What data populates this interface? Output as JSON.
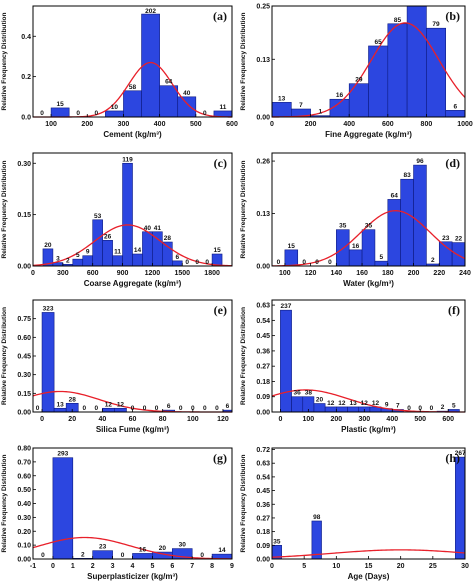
{
  "chart_data": [
    {
      "type": "bar",
      "panel": "(a)",
      "xlabel": "Cement (kg/m³)",
      "ylabel": "Relative Frequency Distribution",
      "xlim": [
        50,
        600
      ],
      "ylim": [
        0,
        0.55
      ],
      "xticks": [
        "100",
        "200",
        "300",
        "400",
        "500",
        "600"
      ],
      "xtick_values": [
        100,
        200,
        300,
        400,
        500,
        600
      ],
      "yticks": [
        "0.0",
        "0.2",
        "0.4"
      ],
      "ytick_values": [
        0.0,
        0.2,
        0.4
      ],
      "bins": [
        {
          "x0": 100,
          "x1": 150,
          "value": 0.045,
          "count": "15"
        },
        {
          "x0": 150,
          "x1": 200,
          "value": 0.0,
          "count": "0"
        },
        {
          "x0": 200,
          "x1": 250,
          "value": 0.0,
          "count": "0"
        },
        {
          "x0": 250,
          "x1": 300,
          "value": 0.03,
          "count": "10"
        },
        {
          "x0": 300,
          "x1": 350,
          "value": 0.13,
          "count": "58"
        },
        {
          "x0": 350,
          "x1": 400,
          "value": 0.51,
          "count": "202"
        },
        {
          "x0": 400,
          "x1": 450,
          "value": 0.155,
          "count": "64"
        },
        {
          "x0": 450,
          "x1": 500,
          "value": 0.1,
          "count": "40"
        },
        {
          "x0": 500,
          "x1": 550,
          "value": 0.0,
          "count": "0"
        },
        {
          "x0": 550,
          "x1": 600,
          "value": 0.03,
          "count": "11"
        }
      ],
      "count_labels_extra": [
        {
          "x": 75,
          "count": "0"
        }
      ],
      "fit_curve": {
        "mean": 375,
        "sd": 60,
        "peak": 0.27
      }
    },
    {
      "type": "bar",
      "panel": "(b)",
      "xlabel": "Fine Aggregate (kg/m³)",
      "ylabel": "Relative Frequency Distribution",
      "xlim": [
        0,
        1000
      ],
      "ylim": [
        0,
        0.25
      ],
      "xticks": [
        "0",
        "200",
        "400",
        "600",
        "800",
        "1000"
      ],
      "xtick_values": [
        0,
        200,
        400,
        600,
        800,
        1000
      ],
      "yticks": [
        "0.00",
        "0.13",
        "0.25"
      ],
      "ytick_values": [
        0.0,
        0.13,
        0.25
      ],
      "bins": [
        {
          "x0": 0,
          "x1": 100,
          "value": 0.033,
          "count": "13"
        },
        {
          "x0": 100,
          "x1": 200,
          "value": 0.018,
          "count": "7"
        },
        {
          "x0": 200,
          "x1": 300,
          "value": 0.003,
          "count": "1"
        },
        {
          "x0": 300,
          "x1": 400,
          "value": 0.04,
          "count": "16"
        },
        {
          "x0": 400,
          "x1": 500,
          "value": 0.075,
          "count": "29"
        },
        {
          "x0": 500,
          "x1": 600,
          "value": 0.16,
          "count": "65"
        },
        {
          "x0": 600,
          "x1": 700,
          "value": 0.21,
          "count": "85"
        },
        {
          "x0": 700,
          "x1": 800,
          "value": 0.25,
          "count": ""
        },
        {
          "x0": 800,
          "x1": 900,
          "value": 0.2,
          "count": "79"
        },
        {
          "x0": 900,
          "x1": 1000,
          "value": 0.015,
          "count": "6"
        }
      ],
      "fit_curve": {
        "mean": 690,
        "sd": 175,
        "peak": 0.212
      }
    },
    {
      "type": "bar",
      "panel": "(c)",
      "xlabel": "Coarse Aggregate (kg/m³)",
      "ylabel": "Relative Frequency Distribution",
      "xlim": [
        0,
        2000
      ],
      "ylim": [
        0,
        0.33
      ],
      "xticks": [
        "0",
        "300",
        "600",
        "900",
        "1200",
        "1500",
        "1800"
      ],
      "xtick_values": [
        0,
        300,
        600,
        900,
        1200,
        1500,
        1800
      ],
      "yticks": [
        "0.00",
        "0.15",
        "0.30"
      ],
      "ytick_values": [
        0.0,
        0.15,
        0.3
      ],
      "bins": [
        {
          "x0": 100,
          "x1": 200,
          "value": 0.05,
          "count": "20"
        },
        {
          "x0": 200,
          "x1": 300,
          "value": 0.01,
          "count": "3"
        },
        {
          "x0": 300,
          "x1": 400,
          "value": 0.005,
          "count": "2"
        },
        {
          "x0": 400,
          "x1": 500,
          "value": 0.02,
          "count": "5"
        },
        {
          "x0": 500,
          "x1": 600,
          "value": 0.03,
          "count": "9"
        },
        {
          "x0": 600,
          "x1": 700,
          "value": 0.135,
          "count": "53"
        },
        {
          "x0": 700,
          "x1": 800,
          "value": 0.075,
          "count": "26"
        },
        {
          "x0": 800,
          "x1": 900,
          "value": 0.03,
          "count": "11"
        },
        {
          "x0": 900,
          "x1": 1000,
          "value": 0.3,
          "count": "119"
        },
        {
          "x0": 1000,
          "x1": 1100,
          "value": 0.035,
          "count": "14"
        },
        {
          "x0": 1100,
          "x1": 1200,
          "value": 0.1,
          "count": "40"
        },
        {
          "x0": 1200,
          "x1": 1300,
          "value": 0.1,
          "count": "41"
        },
        {
          "x0": 1300,
          "x1": 1400,
          "value": 0.07,
          "count": "28"
        },
        {
          "x0": 1400,
          "x1": 1500,
          "value": 0.015,
          "count": "6"
        },
        {
          "x0": 1500,
          "x1": 1600,
          "value": 0.0,
          "count": "0"
        },
        {
          "x0": 1600,
          "x1": 1700,
          "value": 0.0,
          "count": "0"
        },
        {
          "x0": 1700,
          "x1": 1800,
          "value": 0.0,
          "count": "0"
        },
        {
          "x0": 1800,
          "x1": 1900,
          "value": 0.035,
          "count": "15"
        }
      ],
      "fit_curve": {
        "mean": 950,
        "sd": 330,
        "peak": 0.12
      }
    },
    {
      "type": "bar",
      "panel": "(d)",
      "xlabel": "Water (kg/m³)",
      "ylabel": "Relative Frequency Distribution",
      "xlim": [
        90,
        240
      ],
      "ylim": [
        0,
        0.28
      ],
      "xticks": [
        "100",
        "120",
        "140",
        "160",
        "180",
        "200",
        "220",
        "240"
      ],
      "xtick_values": [
        100,
        120,
        140,
        160,
        180,
        200,
        220,
        240
      ],
      "yticks": [
        "0.00",
        "0.13",
        "0.26"
      ],
      "ytick_values": [
        0.0,
        0.13,
        0.26
      ],
      "bins": [
        {
          "x0": 100,
          "x1": 110,
          "value": 0.04,
          "count": "15"
        },
        {
          "x0": 110,
          "x1": 120,
          "value": 0.0,
          "count": "0"
        },
        {
          "x0": 120,
          "x1": 130,
          "value": 0.0,
          "count": "0"
        },
        {
          "x0": 130,
          "x1": 140,
          "value": 0.0,
          "count": "0"
        },
        {
          "x0": 140,
          "x1": 150,
          "value": 0.09,
          "count": "35"
        },
        {
          "x0": 150,
          "x1": 160,
          "value": 0.04,
          "count": "16"
        },
        {
          "x0": 160,
          "x1": 170,
          "value": 0.09,
          "count": "35"
        },
        {
          "x0": 170,
          "x1": 180,
          "value": 0.012,
          "count": "5"
        },
        {
          "x0": 180,
          "x1": 190,
          "value": 0.165,
          "count": "64"
        },
        {
          "x0": 190,
          "x1": 200,
          "value": 0.215,
          "count": "83"
        },
        {
          "x0": 200,
          "x1": 210,
          "value": 0.25,
          "count": "96"
        },
        {
          "x0": 210,
          "x1": 220,
          "value": 0.005,
          "count": "2"
        },
        {
          "x0": 220,
          "x1": 230,
          "value": 0.06,
          "count": "23"
        },
        {
          "x0": 230,
          "x1": 240,
          "value": 0.058,
          "count": "22"
        }
      ],
      "count_labels_extra": [
        {
          "x": 95,
          "count": "0"
        }
      ],
      "fit_curve": {
        "mean": 186,
        "sd": 27,
        "peak": 0.137
      }
    },
    {
      "type": "bar",
      "panel": "(e)",
      "xlabel": "Silica Fume (kg/m³)",
      "ylabel": "Relative Frequency Distribution",
      "xlim": [
        -6,
        126
      ],
      "ylim": [
        0,
        0.9
      ],
      "xticks": [
        "0",
        "20",
        "40",
        "60",
        "80",
        "100",
        "120"
      ],
      "xtick_values": [
        0,
        20,
        40,
        60,
        80,
        100,
        120
      ],
      "yticks": [
        "0.00",
        "0.15",
        "0.30",
        "0.45",
        "0.60",
        "0.75"
      ],
      "ytick_values": [
        0.0,
        0.15,
        0.3,
        0.45,
        0.6,
        0.75
      ],
      "bins": [
        {
          "x0": 0,
          "x1": 8,
          "value": 0.8,
          "count": "323"
        },
        {
          "x0": 8,
          "x1": 16,
          "value": 0.03,
          "count": "13"
        },
        {
          "x0": 16,
          "x1": 24,
          "value": 0.07,
          "count": "28"
        },
        {
          "x0": 24,
          "x1": 32,
          "value": 0.0,
          "count": "0"
        },
        {
          "x0": 32,
          "x1": 40,
          "value": 0.0,
          "count": "0"
        },
        {
          "x0": 40,
          "x1": 48,
          "value": 0.03,
          "count": "12"
        },
        {
          "x0": 48,
          "x1": 56,
          "value": 0.03,
          "count": "12"
        },
        {
          "x0": 56,
          "x1": 64,
          "value": 0.0,
          "count": "0"
        },
        {
          "x0": 64,
          "x1": 72,
          "value": 0.0,
          "count": "0"
        },
        {
          "x0": 72,
          "x1": 80,
          "value": 0.0,
          "count": "0"
        },
        {
          "x0": 80,
          "x1": 88,
          "value": 0.015,
          "count": "6"
        },
        {
          "x0": 88,
          "x1": 96,
          "value": 0.0,
          "count": "0"
        },
        {
          "x0": 96,
          "x1": 104,
          "value": 0.0,
          "count": "0"
        },
        {
          "x0": 104,
          "x1": 112,
          "value": 0.0,
          "count": "0"
        },
        {
          "x0": 112,
          "x1": 120,
          "value": 0.0,
          "count": "0"
        },
        {
          "x0": 120,
          "x1": 126,
          "value": 0.015,
          "count": "6"
        }
      ],
      "count_labels_extra": [
        {
          "x": -3,
          "count": "0"
        }
      ],
      "fit_curve": {
        "mean": 12,
        "sd": 26,
        "peak": 0.165
      }
    },
    {
      "type": "bar",
      "panel": "(f)",
      "xlabel": "Plastic (kg/m³)",
      "ylabel": "Relative Frequency Distribution",
      "xlim": [
        -30,
        660
      ],
      "ylim": [
        0,
        0.66
      ],
      "xticks": [
        "0",
        "100",
        "200",
        "300",
        "400",
        "500",
        "600"
      ],
      "xtick_values": [
        0,
        100,
        200,
        300,
        400,
        500,
        600
      ],
      "yticks": [
        "0.00",
        "0.09",
        "0.18",
        "0.27",
        "0.36",
        "0.45",
        "0.54",
        "0.63"
      ],
      "ytick_values": [
        0.0,
        0.09,
        0.18,
        0.27,
        0.36,
        0.45,
        0.54,
        0.63
      ],
      "bins": [
        {
          "x0": 0,
          "x1": 40,
          "value": 0.6,
          "count": "237"
        },
        {
          "x0": 40,
          "x1": 80,
          "value": 0.09,
          "count": "36"
        },
        {
          "x0": 80,
          "x1": 120,
          "value": 0.09,
          "count": "38"
        },
        {
          "x0": 120,
          "x1": 160,
          "value": 0.05,
          "count": "20"
        },
        {
          "x0": 160,
          "x1": 200,
          "value": 0.03,
          "count": "12"
        },
        {
          "x0": 200,
          "x1": 240,
          "value": 0.03,
          "count": "12"
        },
        {
          "x0": 240,
          "x1": 280,
          "value": 0.03,
          "count": "13"
        },
        {
          "x0": 280,
          "x1": 320,
          "value": 0.03,
          "count": "12"
        },
        {
          "x0": 320,
          "x1": 360,
          "value": 0.03,
          "count": "12"
        },
        {
          "x0": 360,
          "x1": 400,
          "value": 0.02,
          "count": "9"
        },
        {
          "x0": 400,
          "x1": 440,
          "value": 0.015,
          "count": "7"
        },
        {
          "x0": 440,
          "x1": 480,
          "value": 0.0,
          "count": "0"
        },
        {
          "x0": 480,
          "x1": 520,
          "value": 0.0,
          "count": "0"
        },
        {
          "x0": 520,
          "x1": 560,
          "value": 0.0,
          "count": "0"
        },
        {
          "x0": 560,
          "x1": 600,
          "value": 0.005,
          "count": "2"
        },
        {
          "x0": 600,
          "x1": 640,
          "value": 0.015,
          "count": "5"
        }
      ],
      "fit_curve": {
        "mean": 90,
        "sd": 150,
        "peak": 0.13
      }
    },
    {
      "type": "bar",
      "panel": "(g)",
      "xlabel": "Superplasticizer (kg/m³)",
      "ylabel": "Relative Frequency Distribution",
      "xlim": [
        -1,
        9
      ],
      "ylim": [
        0,
        0.8
      ],
      "xticks": [
        "-1",
        "0",
        "1",
        "2",
        "3",
        "4",
        "5",
        "6",
        "7",
        "8",
        "9"
      ],
      "xtick_values": [
        -1,
        0,
        1,
        2,
        3,
        4,
        5,
        6,
        7,
        8,
        9
      ],
      "yticks": [
        "0.00",
        "0.10",
        "0.20",
        "0.30",
        "0.40",
        "0.50",
        "0.60",
        "0.70",
        "0.80"
      ],
      "ytick_values": [
        0.0,
        0.1,
        0.2,
        0.3,
        0.4,
        0.5,
        0.6,
        0.7,
        0.8
      ],
      "bins": [
        {
          "x0": 0,
          "x1": 1,
          "value": 0.73,
          "count": "293"
        },
        {
          "x0": 1,
          "x1": 2,
          "value": 0.005,
          "count": "2"
        },
        {
          "x0": 2,
          "x1": 3,
          "value": 0.06,
          "count": "23"
        },
        {
          "x0": 3,
          "x1": 4,
          "value": 0.0,
          "count": "0"
        },
        {
          "x0": 4,
          "x1": 5,
          "value": 0.04,
          "count": "16"
        },
        {
          "x0": 5,
          "x1": 6,
          "value": 0.05,
          "count": "20"
        },
        {
          "x0": 6,
          "x1": 7,
          "value": 0.075,
          "count": "30"
        },
        {
          "x0": 7,
          "x1": 8,
          "value": 0.0,
          "count": "0"
        },
        {
          "x0": 8,
          "x1": 9,
          "value": 0.035,
          "count": "14"
        }
      ],
      "count_labels_extra": [
        {
          "x": -0.5,
          "count": "0"
        }
      ],
      "fit_curve": {
        "mean": 1.6,
        "sd": 2.3,
        "peak": 0.155
      }
    },
    {
      "type": "bar",
      "panel": "(h)",
      "xlabel": "Age (Days)",
      "ylabel": "Relative Frequency Distribution",
      "xlim": [
        0,
        30
      ],
      "ylim": [
        0,
        0.73
      ],
      "xticks": [
        "0",
        "5",
        "10",
        "15",
        "20",
        "25",
        "30"
      ],
      "xtick_values": [
        0,
        5,
        10,
        15,
        20,
        25,
        30
      ],
      "yticks": [
        "0.00",
        "0.09",
        "0.18",
        "0.27",
        "0.36",
        "0.45",
        "0.54",
        "0.63",
        "0.72"
      ],
      "ytick_values": [
        0.0,
        0.09,
        0.18,
        0.27,
        0.36,
        0.45,
        0.54,
        0.63,
        0.72
      ],
      "bins": [
        {
          "x0": 0,
          "x1": 1.5,
          "value": 0.09,
          "count": "35"
        },
        {
          "x0": 6.2,
          "x1": 7.7,
          "value": 0.25,
          "count": "98"
        },
        {
          "x0": 28.5,
          "x1": 30,
          "value": 0.67,
          "count": "267"
        }
      ],
      "fit_curve": {
        "mean": 20,
        "sd": 11,
        "peak": 0.06
      }
    }
  ]
}
